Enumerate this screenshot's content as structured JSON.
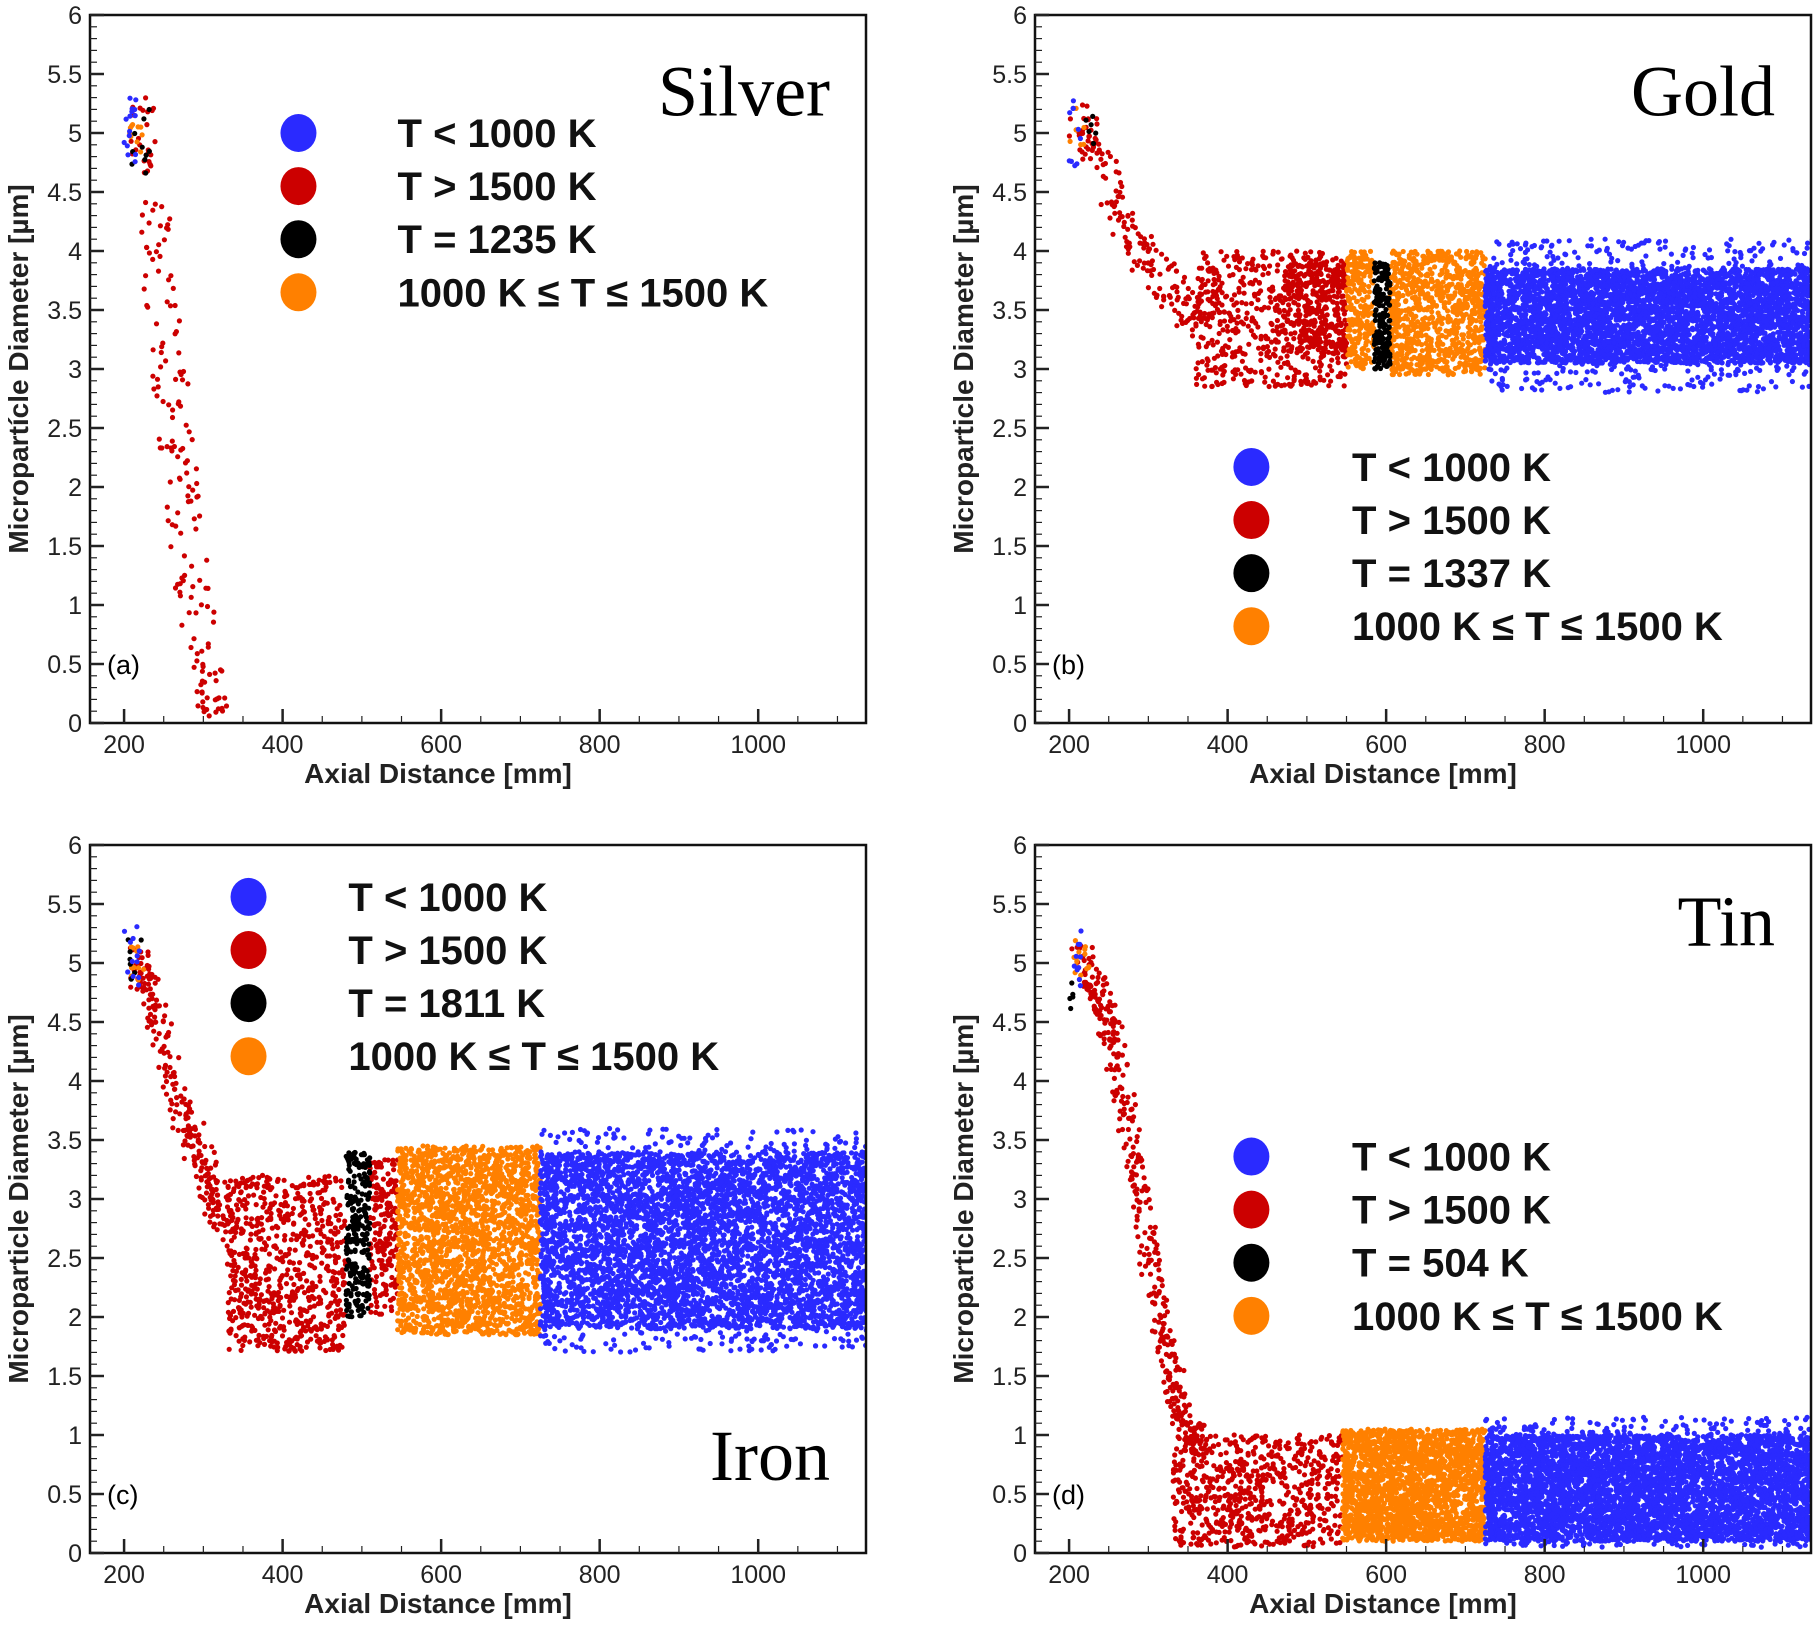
{
  "chart_data": [
    {
      "type": "scatter",
      "panel_label": "(a)",
      "material": "Silver",
      "xlabel": "Axial Distance [mm]",
      "ylabel": "Micropartícle Diameter [µm]",
      "xlim": [
        157,
        1136
      ],
      "ylim": [
        0,
        6
      ],
      "xticks": [
        "200",
        "400",
        "600",
        "800",
        "1000"
      ],
      "yticks": [
        "0",
        "0.5",
        "1",
        "1.5",
        "2",
        "2.5",
        "3",
        "3.5",
        "4",
        "4.5",
        "5",
        "5.5",
        "6"
      ],
      "legend": [
        "T < 1000 K",
        "T > 1500 K",
        "T = 1235 K",
        "1000 K ≤ T ≤ 1500 K"
      ],
      "legend_placement": "top-center",
      "series": [
        {
          "color": "#cc0000",
          "regions": [
            {
              "x": [
                205,
                240
              ],
              "y": [
                4.6,
                5.3
              ],
              "n": 25
            },
            {
              "path": [
                [
                  232,
                  4.45
                ],
                [
                  250,
                  3.5
                ],
                [
                  265,
                  2.5
                ],
                [
                  280,
                  1.5
                ],
                [
                  300,
                  0.5
                ],
                [
                  312,
                  0.05
                ]
              ],
              "sx": 22,
              "sy": 0.05,
              "n": 160
            }
          ]
        },
        {
          "color": "#ff8000",
          "regions": [
            {
              "x": [
                205,
                225
              ],
              "y": [
                4.8,
                5.1
              ],
              "n": 10
            }
          ]
        },
        {
          "color": "#000000",
          "regions": [
            {
              "x": [
                205,
                235
              ],
              "y": [
                4.65,
                5.2
              ],
              "n": 10
            }
          ]
        },
        {
          "color": "#2a2aff",
          "regions": [
            {
              "x": [
                200,
                215
              ],
              "y": [
                4.75,
                5.3
              ],
              "n": 15
            }
          ]
        }
      ]
    },
    {
      "type": "scatter",
      "panel_label": "(b)",
      "material": "Gold",
      "xlabel": "Axial Distance [mm]",
      "ylabel": "Microparticle Diameter [µm]",
      "xlim": [
        157,
        1136
      ],
      "ylim": [
        0,
        6
      ],
      "xticks": [
        "200",
        "400",
        "600",
        "800",
        "1000"
      ],
      "yticks": [
        "0",
        "0.5",
        "1",
        "1.5",
        "2",
        "2.5",
        "3",
        "3.5",
        "4",
        "4.5",
        "5",
        "5.5",
        "6"
      ],
      "legend": [
        "T < 1000 K",
        "T > 1500 K",
        "T = 1337 K",
        "1000 K ≤ T ≤ 1500 K"
      ],
      "legend_placement": "center",
      "series": [
        {
          "color": "#cc0000",
          "regions": [
            {
              "path": [
                [
                  212,
                  5.15
                ],
                [
                  240,
                  4.8
                ],
                [
                  270,
                  4.2
                ],
                [
                  300,
                  3.9
                ],
                [
                  340,
                  3.6
                ],
                [
                  370,
                  3.4
                ]
              ],
              "sx": 12,
              "sy": 0.2,
              "n": 180
            },
            {
              "x": [
                360,
                550
              ],
              "y": [
                2.85,
                4.0
              ],
              "n": 550
            },
            {
              "x": [
                470,
                550
              ],
              "y": [
                3.1,
                3.9
              ],
              "n": 300
            }
          ]
        },
        {
          "color": "#ff8000",
          "regions": [
            {
              "x": [
                200,
                220
              ],
              "y": [
                4.9,
                5.4
              ],
              "n": 6
            },
            {
              "x": [
                550,
                585
              ],
              "y": [
                3.0,
                4.0
              ],
              "n": 250
            },
            {
              "x": [
                605,
                725
              ],
              "y": [
                2.95,
                4.0
              ],
              "n": 900
            }
          ]
        },
        {
          "color": "#000000",
          "regions": [
            {
              "x": [
                215,
                235
              ],
              "y": [
                4.9,
                5.15
              ],
              "n": 6
            },
            {
              "x": [
                585,
                605
              ],
              "y": [
                3.0,
                3.9
              ],
              "n": 200
            }
          ]
        },
        {
          "color": "#2a2aff",
          "regions": [
            {
              "x": [
                200,
                215
              ],
              "y": [
                4.7,
                5.3
              ],
              "n": 10
            },
            {
              "x": [
                725,
                1140
              ],
              "y": [
                3.05,
                3.85
              ],
              "n": 4200
            },
            {
              "x": [
                725,
                1140
              ],
              "y": [
                2.8,
                4.1
              ],
              "n": 800
            }
          ]
        }
      ]
    },
    {
      "type": "scatter",
      "panel_label": "(c)",
      "material": "Iron",
      "xlabel": "Axial Distance [mm]",
      "ylabel": "Microparticle Diameter [µm]",
      "xlim": [
        157,
        1136
      ],
      "ylim": [
        0,
        6
      ],
      "xticks": [
        "200",
        "400",
        "600",
        "800",
        "1000"
      ],
      "yticks": [
        "0",
        "0.5",
        "1",
        "1.5",
        "2",
        "2.5",
        "3",
        "3.5",
        "4",
        "4.5",
        "5",
        "5.5",
        "6"
      ],
      "legend": [
        "T < 1000 K",
        "T > 1500 K",
        "T = 1811 K",
        "1000 K ≤ T ≤ 1500 K"
      ],
      "legend_placement": "top-left",
      "series": [
        {
          "color": "#cc0000",
          "regions": [
            {
              "path": [
                [
                  212,
                  5.1
                ],
                [
                  240,
                  4.6
                ],
                [
                  260,
                  4.0
                ],
                [
                  290,
                  3.5
                ],
                [
                  310,
                  3.1
                ],
                [
                  330,
                  2.8
                ]
              ],
              "sx": 12,
              "sy": 0.2,
              "n": 250
            },
            {
              "x": [
                330,
                480
              ],
              "y": [
                1.7,
                3.2
              ],
              "n": 700
            },
            {
              "x": [
                510,
                545
              ],
              "y": [
                2.0,
                3.35
              ],
              "n": 200
            }
          ]
        },
        {
          "color": "#ff8000",
          "regions": [
            {
              "x": [
                205,
                225
              ],
              "y": [
                4.85,
                5.2
              ],
              "n": 10
            },
            {
              "x": [
                545,
                725
              ],
              "y": [
                1.85,
                3.45
              ],
              "n": 2200
            }
          ]
        },
        {
          "color": "#000000",
          "regions": [
            {
              "x": [
                205,
                225
              ],
              "y": [
                4.85,
                5.2
              ],
              "n": 8
            },
            {
              "x": [
                480,
                510
              ],
              "y": [
                2.0,
                3.4
              ],
              "n": 250
            }
          ]
        },
        {
          "color": "#2a2aff",
          "regions": [
            {
              "x": [
                200,
                220
              ],
              "y": [
                4.8,
                5.35
              ],
              "n": 12
            },
            {
              "x": [
                725,
                1140
              ],
              "y": [
                1.9,
                3.4
              ],
              "n": 4500
            },
            {
              "x": [
                725,
                1140
              ],
              "y": [
                1.7,
                3.6
              ],
              "n": 900
            }
          ]
        }
      ]
    },
    {
      "type": "scatter",
      "panel_label": "(d)",
      "material": "Tin",
      "xlabel": "Axial Distance [mm]",
      "ylabel": "Microparticle Diameter [µm]",
      "xlim": [
        157,
        1136
      ],
      "ylim": [
        0,
        6
      ],
      "xticks": [
        "200",
        "400",
        "600",
        "800",
        "1000"
      ],
      "yticks": [
        "0",
        "0.5",
        "1",
        "1.5",
        "2",
        "2.5",
        "3",
        "3.5",
        "4",
        "4.5",
        "5",
        "5.5",
        "6"
      ],
      "legend": [
        "T < 1000 K",
        "T > 1500 K",
        "T = 504 K",
        "1000 K ≤ T ≤ 1500 K"
      ],
      "legend_placement": "center",
      "series": [
        {
          "color": "#cc0000",
          "regions": [
            {
              "path": [
                [
                  215,
                  5.1
                ],
                [
                  240,
                  4.7
                ],
                [
                  260,
                  4.2
                ],
                [
                  280,
                  3.4
                ],
                [
                  300,
                  2.6
                ],
                [
                  320,
                  1.8
                ],
                [
                  340,
                  1.2
                ],
                [
                  365,
                  0.9
                ]
              ],
              "sx": 12,
              "sy": 0.15,
              "n": 400
            },
            {
              "x": [
                330,
                545
              ],
              "y": [
                0.05,
                1.0
              ],
              "n": 700
            }
          ]
        },
        {
          "color": "#ff8000",
          "regions": [
            {
              "x": [
                205,
                225
              ],
              "y": [
                4.85,
                5.2
              ],
              "n": 15
            },
            {
              "x": [
                545,
                725
              ],
              "y": [
                0.1,
                1.05
              ],
              "n": 2200
            }
          ]
        },
        {
          "color": "#000000",
          "regions": [
            {
              "x": [
                200,
                205
              ],
              "y": [
                4.6,
                4.9
              ],
              "n": 5
            }
          ]
        },
        {
          "color": "#2a2aff",
          "regions": [
            {
              "x": [
                205,
                215
              ],
              "y": [
                4.8,
                5.35
              ],
              "n": 10
            },
            {
              "x": [
                725,
                1140
              ],
              "y": [
                0.1,
                1.0
              ],
              "n": 4500
            },
            {
              "x": [
                725,
                1140
              ],
              "y": [
                0.05,
                1.15
              ],
              "n": 800
            }
          ]
        }
      ]
    }
  ],
  "legend_colors": [
    "#2a2aff",
    "#cc0000",
    "#000000",
    "#ff8000"
  ]
}
